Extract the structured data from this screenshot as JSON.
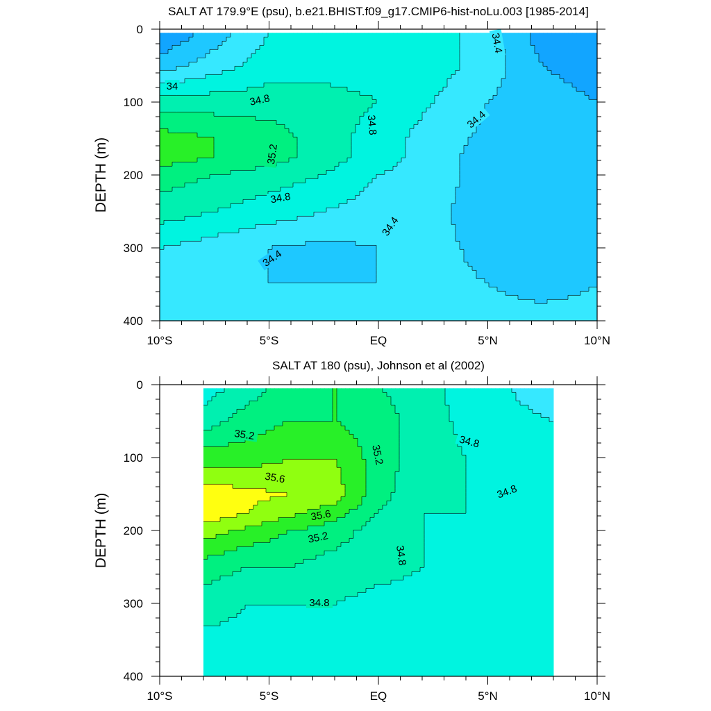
{
  "chart_data": [
    {
      "type": "heatmap",
      "subtype": "filled-contour",
      "title": "SALT AT 179.9°E (psu), b.e21.BHIST.f09_g17.CMIP6-hist-noLu.003 [1985-2014]",
      "xlabel": "",
      "ylabel": "DEPTH (m)",
      "xlim": [
        -10,
        10
      ],
      "ylim": [
        400,
        0
      ],
      "x_ticks": [
        -10,
        -5,
        0,
        5,
        10
      ],
      "x_tick_labels": [
        "10°S",
        "5°S",
        "EQ",
        "5°N",
        "10°N"
      ],
      "y_ticks": [
        0,
        100,
        200,
        300,
        400
      ],
      "y_tick_labels": [
        "0",
        "100",
        "200",
        "300",
        "400"
      ],
      "x": [
        -10,
        -7.5,
        -5,
        -2.5,
        0,
        2.5,
        5,
        7.5,
        10
      ],
      "depth": [
        5,
        50,
        100,
        150,
        175,
        200,
        250,
        300,
        350,
        400
      ],
      "salinity": [
        [
          34.0,
          34.3,
          34.6,
          34.7,
          34.7,
          34.7,
          34.5,
          34.1,
          34.0
        ],
        [
          34.3,
          34.5,
          34.7,
          34.7,
          34.7,
          34.7,
          34.5,
          34.2,
          34.1
        ],
        [
          34.9,
          34.9,
          34.9,
          34.9,
          34.8,
          34.6,
          34.4,
          34.3,
          34.2
        ],
        [
          35.3,
          35.2,
          35.1,
          34.9,
          34.7,
          34.5,
          34.35,
          34.3,
          34.3
        ],
        [
          35.3,
          35.2,
          35.1,
          34.9,
          34.7,
          34.5,
          34.3,
          34.3,
          34.3
        ],
        [
          35.1,
          35.0,
          34.9,
          34.8,
          34.6,
          34.5,
          34.3,
          34.3,
          34.3
        ],
        [
          34.9,
          34.8,
          34.7,
          34.6,
          34.5,
          34.45,
          34.3,
          34.3,
          34.3
        ],
        [
          34.6,
          34.5,
          34.4,
          34.35,
          34.4,
          34.45,
          34.35,
          34.3,
          34.3
        ],
        [
          34.5,
          34.45,
          34.4,
          34.4,
          34.4,
          34.45,
          34.4,
          34.35,
          34.4
        ],
        [
          34.45,
          34.45,
          34.45,
          34.45,
          34.45,
          34.45,
          34.45,
          34.45,
          34.45
        ]
      ],
      "contour_labels": [
        "34",
        "34.4",
        "34.8",
        "34.8",
        "35.2",
        "34.8",
        "34.4",
        "34.4",
        "34.4"
      ]
    },
    {
      "type": "heatmap",
      "subtype": "filled-contour",
      "title": "SALT AT 180 (psu), Johnson et al (2002)",
      "xlabel": "",
      "ylabel": "DEPTH (m)",
      "xlim": [
        -10,
        10
      ],
      "ylim": [
        400,
        0
      ],
      "x_ticks": [
        -10,
        -5,
        0,
        5,
        10
      ],
      "x_tick_labels": [
        "10°S",
        "5°S",
        "EQ",
        "5°N",
        "10°N"
      ],
      "y_ticks": [
        0,
        100,
        200,
        300,
        400
      ],
      "y_tick_labels": [
        "0",
        "100",
        "200",
        "300",
        "400"
      ],
      "data_x_range": [
        -8,
        8
      ],
      "x": [
        -8,
        -6,
        -4,
        -2,
        0,
        2,
        4,
        6,
        8
      ],
      "depth": [
        5,
        50,
        100,
        150,
        175,
        200,
        250,
        300,
        350,
        400
      ],
      "salinity": [
        [
          34.7,
          34.9,
          35.1,
          35.2,
          35.0,
          34.9,
          34.7,
          34.6,
          34.5
        ],
        [
          34.9,
          35.1,
          35.2,
          35.2,
          35.1,
          34.9,
          34.75,
          34.65,
          34.6
        ],
        [
          35.3,
          35.3,
          35.4,
          35.4,
          35.1,
          34.9,
          34.8,
          34.8,
          34.75
        ],
        [
          35.75,
          35.65,
          35.6,
          35.5,
          35.1,
          34.8,
          34.8,
          34.7,
          34.65
        ],
        [
          35.75,
          35.6,
          35.45,
          35.3,
          35.0,
          34.8,
          34.8,
          34.7,
          34.65
        ],
        [
          35.5,
          35.35,
          35.2,
          35.1,
          34.9,
          34.8,
          34.75,
          34.75,
          34.7
        ],
        [
          35.1,
          35.0,
          35.0,
          34.9,
          34.85,
          34.8,
          34.75,
          34.75,
          34.75
        ],
        [
          34.9,
          34.8,
          34.8,
          34.8,
          34.75,
          34.75,
          34.75,
          34.75,
          34.75
        ],
        [
          34.75,
          34.75,
          34.75,
          34.75,
          34.75,
          34.75,
          34.75,
          34.75,
          34.75
        ],
        [
          34.75,
          34.75,
          34.75,
          34.75,
          34.75,
          34.75,
          34.75,
          34.75,
          34.75
        ]
      ],
      "contour_labels": [
        "35.2",
        "35.6",
        "35.6",
        "35.2",
        "35.2",
        "34.8",
        "34.8",
        "34.8",
        "34.8"
      ]
    }
  ],
  "contour_levels": [
    34.0,
    34.2,
    34.4,
    34.6,
    34.8,
    35.0,
    35.2,
    35.4,
    35.6,
    35.8
  ],
  "fill_colors": [
    "#0a82ff",
    "#12a5ff",
    "#1ec8ff",
    "#36e8ff",
    "#00f4e0",
    "#00f0b0",
    "#00f080",
    "#28f028",
    "#90ff10",
    "#ffff10",
    "#ffe020",
    "#ffc830"
  ]
}
